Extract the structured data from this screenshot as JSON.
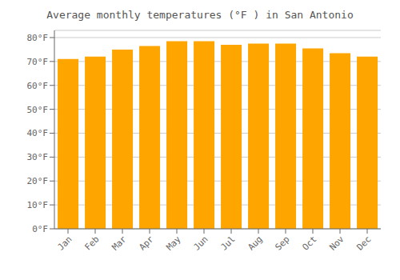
{
  "chart_data": {
    "type": "bar",
    "title": "Average monthly temperatures (°F ) in San Antonio",
    "categories": [
      "Jan",
      "Feb",
      "Mar",
      "Apr",
      "May",
      "Jun",
      "Jul",
      "Aug",
      "Sep",
      "Oct",
      "Nov",
      "Dec"
    ],
    "values": [
      71,
      72,
      75,
      76.5,
      78.5,
      78.5,
      77,
      77.5,
      77.5,
      75.5,
      73.5,
      72
    ],
    "color": "#FFA500",
    "ylim": [
      0,
      83
    ],
    "yticks": [
      {
        "value": 0,
        "label": "0°F"
      },
      {
        "value": 10,
        "label": "10°F"
      },
      {
        "value": 20,
        "label": "20°F"
      },
      {
        "value": 30,
        "label": "30°F"
      },
      {
        "value": 40,
        "label": "40°F"
      },
      {
        "value": 50,
        "label": "50°F"
      },
      {
        "value": 60,
        "label": "60°F"
      },
      {
        "value": 70,
        "label": "70°F"
      },
      {
        "value": 80,
        "label": "80°F"
      }
    ],
    "grid": true
  }
}
